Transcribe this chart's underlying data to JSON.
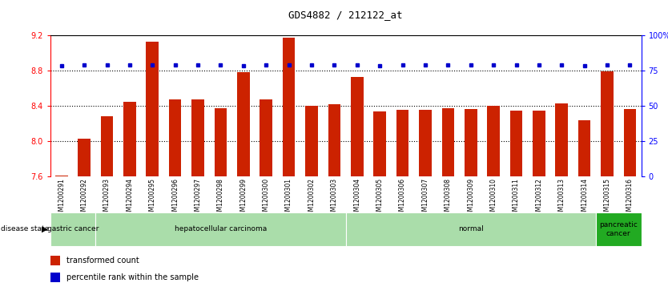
{
  "title": "GDS4882 / 212122_at",
  "samples": [
    "GSM1200291",
    "GSM1200292",
    "GSM1200293",
    "GSM1200294",
    "GSM1200295",
    "GSM1200296",
    "GSM1200297",
    "GSM1200298",
    "GSM1200299",
    "GSM1200300",
    "GSM1200301",
    "GSM1200302",
    "GSM1200303",
    "GSM1200304",
    "GSM1200305",
    "GSM1200306",
    "GSM1200307",
    "GSM1200308",
    "GSM1200309",
    "GSM1200310",
    "GSM1200311",
    "GSM1200312",
    "GSM1200313",
    "GSM1200314",
    "GSM1200315",
    "GSM1200316"
  ],
  "bar_values": [
    7.61,
    8.02,
    8.28,
    8.44,
    9.12,
    8.47,
    8.47,
    8.37,
    8.78,
    8.47,
    9.17,
    8.4,
    8.41,
    8.72,
    8.33,
    8.35,
    8.35,
    8.37,
    8.36,
    8.4,
    8.34,
    8.34,
    8.42,
    8.23,
    8.79,
    8.36
  ],
  "pct_y": [
    8.855,
    8.856,
    8.857,
    8.858,
    8.862,
    8.858,
    8.857,
    8.857,
    8.855,
    8.86,
    8.862,
    8.858,
    8.857,
    8.858,
    8.855,
    8.857,
    8.856,
    8.856,
    8.856,
    8.856,
    8.856,
    8.856,
    8.856,
    8.855,
    8.858,
    8.856
  ],
  "ylim": [
    7.6,
    9.2
  ],
  "yticks_left": [
    7.6,
    8.0,
    8.4,
    8.8,
    9.2
  ],
  "yticks_right_labels": [
    "0",
    "25",
    "50",
    "75",
    "100%"
  ],
  "bar_color": "#cc2200",
  "dot_color": "#0000cc",
  "group_defs": [
    {
      "label": "gastric cancer",
      "start": 0,
      "end": 1,
      "dark": false
    },
    {
      "label": "hepatocellular carcinoma",
      "start": 2,
      "end": 12,
      "dark": false
    },
    {
      "label": "normal",
      "start": 13,
      "end": 23,
      "dark": false
    },
    {
      "label": "pancreatic\ncancer",
      "start": 24,
      "end": 25,
      "dark": true
    }
  ],
  "light_green": "#aaddaa",
  "dark_green": "#22aa22",
  "label_fontsize": 7,
  "tick_fontsize": 6
}
